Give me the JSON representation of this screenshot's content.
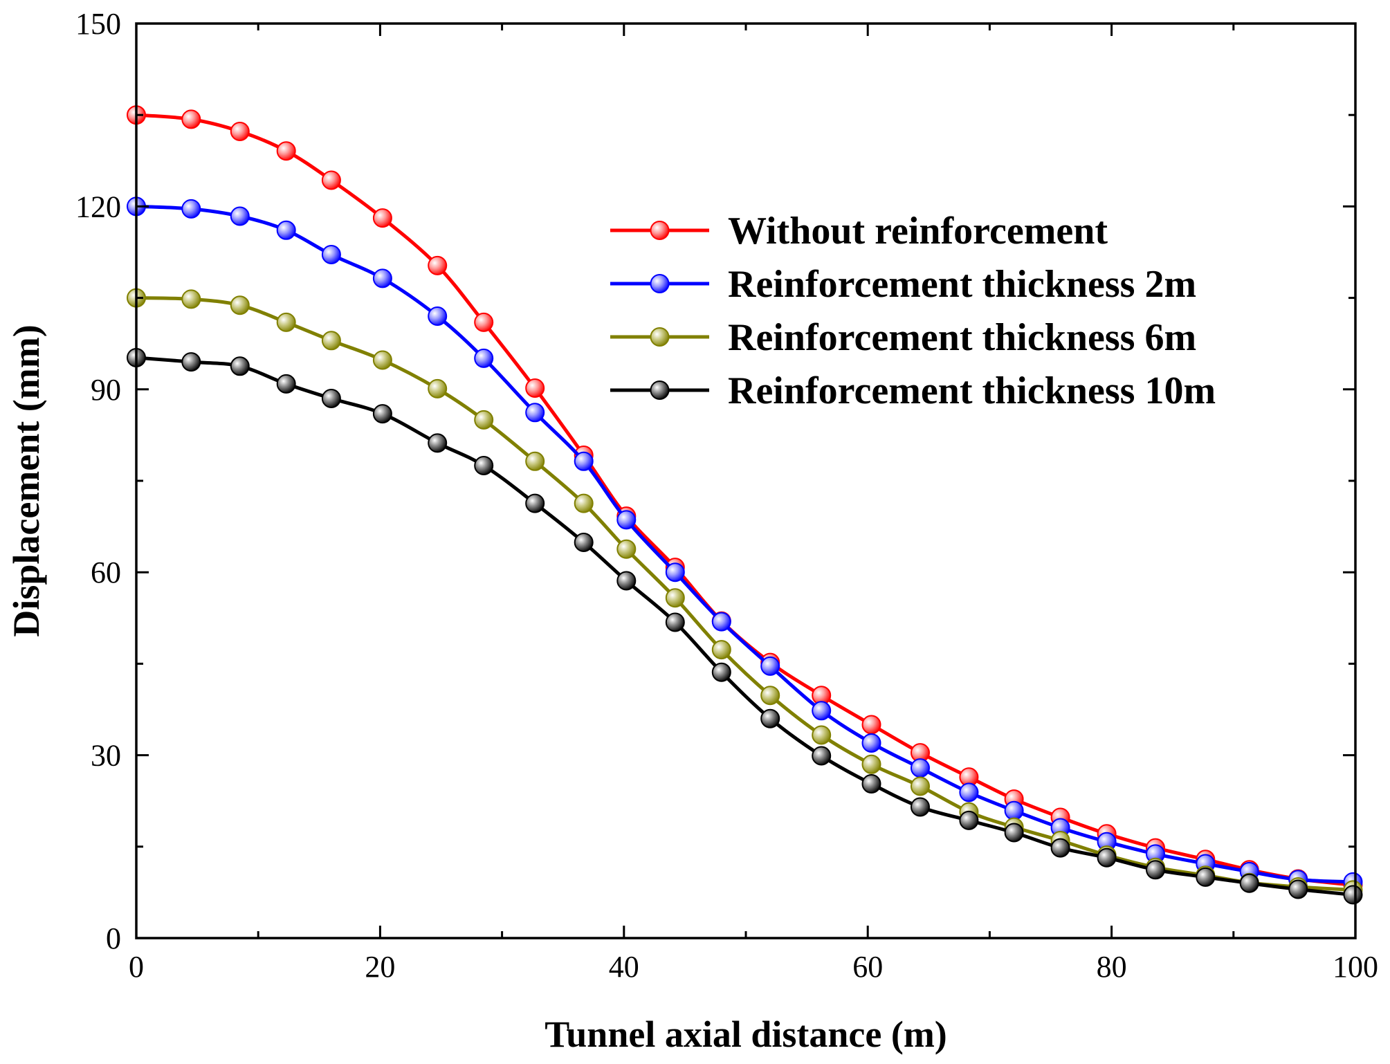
{
  "chart_data": {
    "type": "line",
    "title": "",
    "xlabel": "Tunnel axial distance (m)",
    "ylabel": "Displacement (mm)",
    "xlim": [
      0,
      100
    ],
    "ylim": [
      0,
      150
    ],
    "xticks": [
      0,
      20,
      40,
      60,
      80,
      100
    ],
    "yticks": [
      0,
      30,
      60,
      90,
      120,
      150
    ],
    "grid": false,
    "legend_position": "upper-right",
    "x": [
      0,
      4.5,
      8.5,
      12.3,
      16.0,
      20.2,
      24.7,
      28.5,
      32.7,
      36.7,
      40.2,
      44.2,
      48.0,
      52.0,
      56.2,
      60.3,
      64.3,
      68.3,
      72.0,
      75.8,
      79.6,
      83.6,
      87.7,
      91.3,
      95.3,
      99.8
    ],
    "series": [
      {
        "name": "Without reinforcement",
        "color": "#ff0000",
        "values": [
          135.0,
          134.3,
          132.3,
          129.1,
          124.3,
          118.1,
          110.3,
          101.0,
          90.2,
          79.2,
          69.2,
          60.8,
          52.0,
          45.2,
          39.8,
          35.0,
          30.4,
          26.4,
          22.8,
          19.8,
          17.1,
          14.8,
          12.9,
          11.2,
          9.7,
          8.7
        ]
      },
      {
        "name": "Reinforcement thickness 2m",
        "color": "#0000ff",
        "values": [
          120.0,
          119.6,
          118.4,
          116.1,
          112.1,
          108.2,
          102.0,
          95.1,
          86.2,
          78.2,
          68.6,
          60.0,
          51.9,
          44.6,
          37.3,
          32.0,
          27.9,
          23.9,
          20.9,
          18.1,
          15.8,
          13.8,
          12.2,
          10.9,
          9.6,
          9.2
        ]
      },
      {
        "name": "Reinforcement thickness 6m",
        "color": "#808000",
        "values": [
          105.0,
          104.8,
          103.8,
          101.0,
          98.0,
          94.8,
          90.1,
          85.0,
          78.2,
          71.3,
          63.8,
          55.8,
          47.3,
          39.8,
          33.3,
          28.5,
          24.9,
          20.7,
          18.2,
          16.0,
          13.6,
          11.6,
          10.3,
          9.1,
          8.4,
          7.9
        ]
      },
      {
        "name": "Reinforcement thickness 10m",
        "color": "#000000",
        "values": [
          95.2,
          94.5,
          93.8,
          90.9,
          88.5,
          86.0,
          81.2,
          77.5,
          71.3,
          64.9,
          58.6,
          51.8,
          43.6,
          36.0,
          29.9,
          25.3,
          21.5,
          19.3,
          17.3,
          14.8,
          13.2,
          11.2,
          10.0,
          9.0,
          8.0,
          7.1
        ]
      }
    ]
  }
}
